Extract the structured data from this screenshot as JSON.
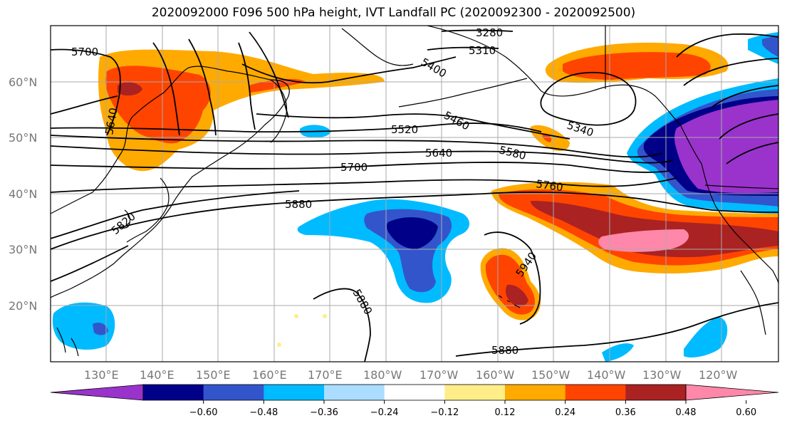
{
  "title": "2020092000 F096 500 hPa height, IVT Landfall PC (2020092300 - 2020092500)",
  "map": {
    "lat_labels": [
      "60°N",
      "50°N",
      "40°N",
      "30°N",
      "20°N"
    ],
    "lon_labels": [
      "130°E",
      "140°E",
      "150°E",
      "160°E",
      "170°E",
      "180°W",
      "170°W",
      "160°W",
      "150°W",
      "140°W",
      "130°W",
      "120°W"
    ],
    "contour_labels": [
      "5700",
      "5640",
      "3280",
      "5310",
      "5400",
      "5460",
      "5520",
      "5640",
      "5580",
      "5340",
      "5700",
      "5760",
      "5880",
      "5820",
      "5940",
      "5880",
      "5880"
    ],
    "contour_color": "#000000",
    "land_outline_color": "#000000",
    "grid": true
  },
  "colorbar": {
    "colors": [
      "#9933cc",
      "#000088",
      "#3355cc",
      "#00bbff",
      "#aaddff",
      "#ffffff",
      "#ffee88",
      "#ffaa00",
      "#ff4400",
      "#aa2222",
      "#ff88aa"
    ],
    "tick_labels": [
      "−0.60",
      "−0.48",
      "−0.36",
      "−0.24",
      "−0.12",
      "0.12",
      "0.24",
      "0.36",
      "0.48",
      "0.60"
    ],
    "extend": "both"
  }
}
